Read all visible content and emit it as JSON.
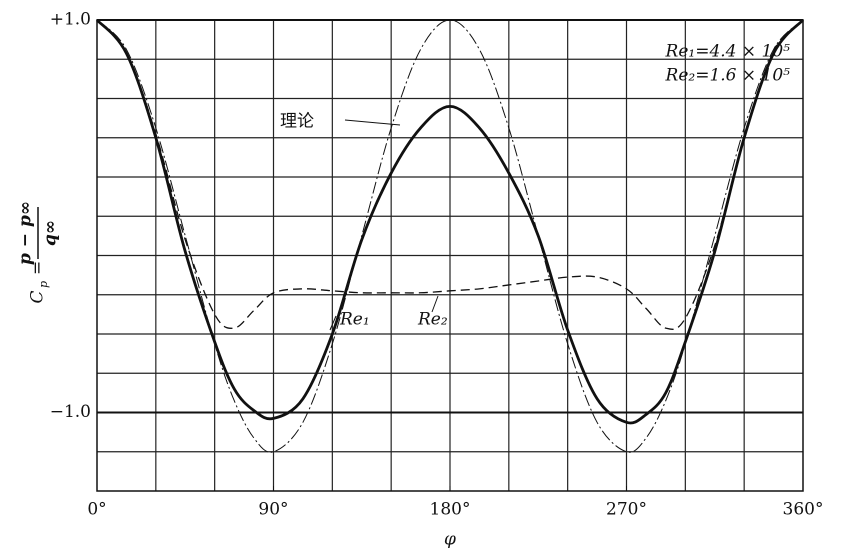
{
  "chart_data": {
    "type": "line",
    "xlabel": "φ",
    "ylabel": {
      "lhs": "C",
      "lhs_sub": "p",
      "num": "p − p∞",
      "den": "q∞"
    },
    "xlim": [
      0,
      360
    ],
    "ylim": [
      -1.4,
      1.0
    ],
    "xticks": [
      {
        "value": 0,
        "label": "0°"
      },
      {
        "value": 90,
        "label": "90°"
      },
      {
        "value": 180,
        "label": "180°"
      },
      {
        "value": 270,
        "label": "270°"
      },
      {
        "value": 360,
        "label": "360°"
      }
    ],
    "yticks": [
      {
        "value": 1.0,
        "label": "+1.0"
      },
      {
        "value": -1.0,
        "label": "−1.0"
      }
    ],
    "xgrid": [
      30,
      60,
      90,
      120,
      150,
      180,
      210,
      240,
      270,
      300,
      330
    ],
    "ygrid": [
      0.8,
      0.6,
      0.4,
      0.2,
      0,
      -0.2,
      -0.4,
      -0.6,
      -0.8,
      -1.0,
      -1.2
    ],
    "notes": [
      "Re₁=4.4 × 10⁵",
      "Re₂=1.6 × 10⁵"
    ],
    "x": [
      0,
      15,
      30,
      45,
      60,
      70,
      80,
      90,
      105,
      120,
      135,
      150,
      165,
      180,
      195,
      210,
      225,
      240,
      255,
      270,
      280,
      290,
      300,
      315,
      330,
      345,
      360
    ],
    "series": [
      {
        "name": "理论",
        "color": "#111111",
        "style": "dashdot",
        "values": [
          1.0,
          0.85,
          0.45,
          -0.1,
          -0.65,
          -0.94,
          -1.13,
          -1.2,
          -1.05,
          -0.65,
          -0.1,
          0.45,
          0.85,
          1.0,
          0.85,
          0.45,
          -0.1,
          -0.65,
          -1.05,
          -1.2,
          -1.13,
          -0.94,
          -0.65,
          -0.1,
          0.45,
          0.85,
          1.0
        ]
      },
      {
        "name": "Re₁",
        "color": "#111111",
        "style": "thick",
        "values": [
          1.0,
          0.83,
          0.4,
          -0.18,
          -0.64,
          -0.88,
          -0.99,
          -1.03,
          -0.93,
          -0.6,
          -0.12,
          0.22,
          0.45,
          0.56,
          0.45,
          0.22,
          -0.1,
          -0.58,
          -0.93,
          -1.05,
          -1.01,
          -0.9,
          -0.64,
          -0.18,
          0.4,
          0.83,
          1.0
        ]
      },
      {
        "name": "Re₂",
        "color": "#111111",
        "style": "dashed",
        "values": [
          1.0,
          0.83,
          0.42,
          -0.12,
          -0.5,
          -0.57,
          -0.48,
          -0.39,
          -0.37,
          -0.38,
          -0.39,
          -0.39,
          -0.39,
          -0.38,
          -0.37,
          -0.35,
          -0.33,
          -0.31,
          -0.31,
          -0.37,
          -0.47,
          -0.57,
          -0.52,
          -0.15,
          0.4,
          0.83,
          1.0
        ]
      }
    ]
  }
}
